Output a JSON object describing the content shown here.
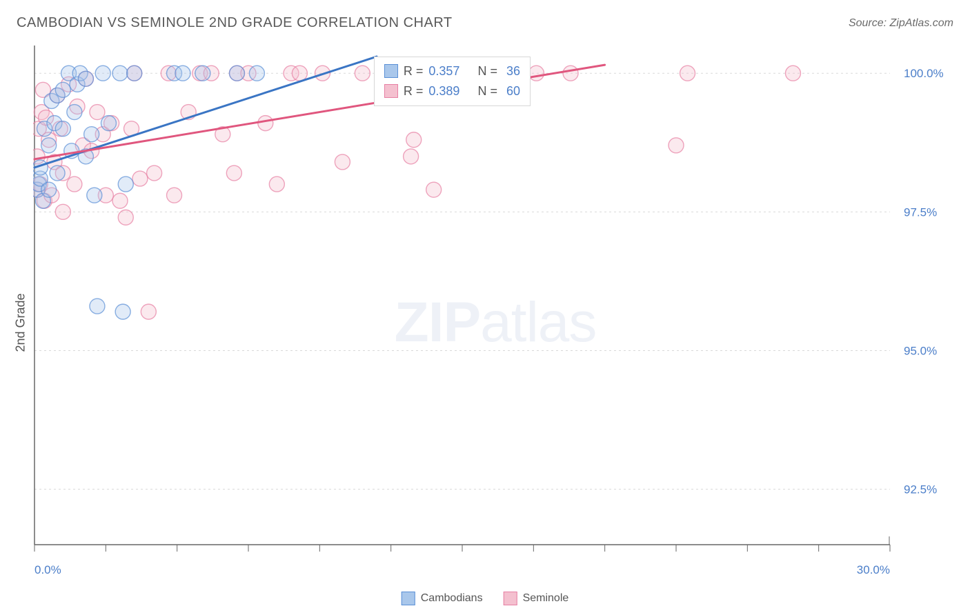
{
  "title": "CAMBODIAN VS SEMINOLE 2ND GRADE CORRELATION CHART",
  "source": "Source: ZipAtlas.com",
  "y_axis_label": "2nd Grade",
  "watermark_bold": "ZIP",
  "watermark_light": "atlas",
  "chart": {
    "type": "scatter-regression",
    "background_color": "#ffffff",
    "grid_color": "#d9d9d9",
    "grid_dash": "3,4",
    "axis_line_color": "#666666",
    "tick_label_color": "#4b7ec9",
    "tick_fontsize": 17,
    "xlim": [
      0,
      30
    ],
    "ylim": [
      91.5,
      100.5
    ],
    "x_ticks": [
      0,
      2.5,
      5,
      7.5,
      10,
      12.5,
      15,
      17.5,
      20,
      22.5,
      25,
      27.5,
      30
    ],
    "x_tick_labels_shown": {
      "0": "0.0%",
      "30": "30.0%"
    },
    "y_ticks": [
      92.5,
      95.0,
      97.5,
      100.0
    ],
    "y_tick_labels": [
      "92.5%",
      "95.0%",
      "97.5%",
      "100.0%"
    ],
    "marker_radius": 11,
    "marker_opacity": 0.35,
    "line_width": 3
  },
  "series": [
    {
      "name": "Cambodians",
      "label": "Cambodians",
      "fill_color": "#a9c7eb",
      "stroke_color": "#5a8fd6",
      "line_color": "#3a75c4",
      "R": "0.357",
      "N": "36",
      "regression_line": {
        "x1": 0,
        "y1": 98.3,
        "x2": 12,
        "y2": 100.3
      },
      "points": [
        [
          0.1,
          97.9
        ],
        [
          0.15,
          98.0
        ],
        [
          0.2,
          98.1
        ],
        [
          0.2,
          98.3
        ],
        [
          0.3,
          97.7
        ],
        [
          0.35,
          99.0
        ],
        [
          0.5,
          97.9
        ],
        [
          0.5,
          98.7
        ],
        [
          0.6,
          99.5
        ],
        [
          0.7,
          99.1
        ],
        [
          0.8,
          98.2
        ],
        [
          0.8,
          99.6
        ],
        [
          1.0,
          99.0
        ],
        [
          1.0,
          99.7
        ],
        [
          1.2,
          100.0
        ],
        [
          1.3,
          98.6
        ],
        [
          1.4,
          99.3
        ],
        [
          1.5,
          99.8
        ],
        [
          1.6,
          100.0
        ],
        [
          1.8,
          98.5
        ],
        [
          1.8,
          99.9
        ],
        [
          2.0,
          98.9
        ],
        [
          2.1,
          97.8
        ],
        [
          2.2,
          95.8
        ],
        [
          2.4,
          100.0
        ],
        [
          2.6,
          99.1
        ],
        [
          3.0,
          100.0
        ],
        [
          3.1,
          95.7
        ],
        [
          3.2,
          98.0
        ],
        [
          3.5,
          100.0
        ],
        [
          4.9,
          100.0
        ],
        [
          5.2,
          100.0
        ],
        [
          5.9,
          100.0
        ],
        [
          7.1,
          100.0
        ],
        [
          7.8,
          100.0
        ],
        [
          17.0,
          100.0
        ]
      ]
    },
    {
      "name": "Seminole",
      "label": "Seminole",
      "fill_color": "#f4c0cf",
      "stroke_color": "#e77fa3",
      "line_color": "#e0567e",
      "R": "0.389",
      "N": "60",
      "regression_line": {
        "x1": 0,
        "y1": 98.45,
        "x2": 20,
        "y2": 100.15
      },
      "points": [
        [
          0.1,
          97.9
        ],
        [
          0.1,
          98.5
        ],
        [
          0.15,
          99.0
        ],
        [
          0.2,
          98.0
        ],
        [
          0.25,
          99.3
        ],
        [
          0.3,
          99.7
        ],
        [
          0.35,
          97.7
        ],
        [
          0.4,
          99.2
        ],
        [
          0.5,
          98.8
        ],
        [
          0.6,
          97.8
        ],
        [
          0.7,
          98.4
        ],
        [
          0.8,
          99.6
        ],
        [
          0.9,
          99.0
        ],
        [
          1.0,
          98.2
        ],
        [
          1.0,
          97.5
        ],
        [
          1.2,
          99.8
        ],
        [
          1.4,
          98.0
        ],
        [
          1.5,
          99.4
        ],
        [
          1.7,
          98.7
        ],
        [
          1.8,
          99.9
        ],
        [
          2.0,
          98.6
        ],
        [
          2.2,
          99.3
        ],
        [
          2.4,
          98.9
        ],
        [
          2.5,
          97.8
        ],
        [
          2.7,
          99.1
        ],
        [
          3.0,
          97.7
        ],
        [
          3.2,
          97.4
        ],
        [
          3.4,
          99.0
        ],
        [
          3.7,
          98.1
        ],
        [
          3.5,
          100.0
        ],
        [
          4.2,
          98.2
        ],
        [
          4.7,
          100.0
        ],
        [
          4.9,
          97.8
        ],
        [
          4.0,
          95.7
        ],
        [
          5.4,
          99.3
        ],
        [
          5.8,
          100.0
        ],
        [
          6.2,
          100.0
        ],
        [
          6.6,
          98.9
        ],
        [
          7.0,
          98.2
        ],
        [
          7.1,
          100.0
        ],
        [
          7.5,
          100.0
        ],
        [
          8.1,
          99.1
        ],
        [
          8.5,
          98.0
        ],
        [
          9.0,
          100.0
        ],
        [
          9.3,
          100.0
        ],
        [
          10.1,
          100.0
        ],
        [
          10.8,
          98.4
        ],
        [
          11.5,
          100.0
        ],
        [
          12.3,
          100.0
        ],
        [
          13.2,
          98.5
        ],
        [
          14.0,
          97.9
        ],
        [
          14.1,
          100.0
        ],
        [
          13.3,
          98.8
        ],
        [
          15.5,
          100.0
        ],
        [
          16.5,
          100.0
        ],
        [
          17.6,
          100.0
        ],
        [
          18.8,
          100.0
        ],
        [
          22.5,
          98.7
        ],
        [
          22.9,
          100.0
        ],
        [
          26.6,
          100.0
        ]
      ]
    }
  ],
  "stats_legend": {
    "r_label": "R =",
    "n_label": "N ="
  },
  "bottom_legend": {
    "items": [
      "Cambodians",
      "Seminole"
    ]
  }
}
